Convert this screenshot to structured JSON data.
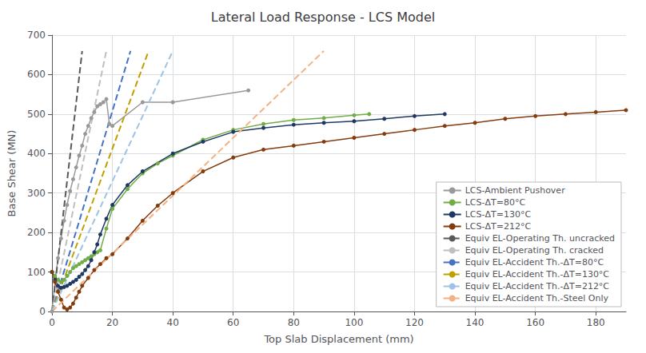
{
  "chart_data": {
    "type": "line",
    "title": "Lateral Load Response - LCS Model",
    "xlabel": "Top Slab Displacement (mm)",
    "ylabel": "Base Shear (MN)",
    "xlim": [
      0,
      190
    ],
    "ylim": [
      0,
      700
    ],
    "xticks": [
      0,
      20,
      40,
      60,
      80,
      100,
      120,
      140,
      160,
      180
    ],
    "yticks": [
      0,
      100,
      200,
      300,
      400,
      500,
      600,
      700
    ],
    "grid": true,
    "legend": "lower right",
    "series": [
      {
        "name": "LCS-Ambient Pushover",
        "color": "#999999",
        "line_style": "solid",
        "marker": "circle",
        "x": [
          0,
          1,
          2,
          3,
          4,
          5,
          6,
          7,
          8,
          9,
          10,
          11,
          12,
          13,
          14,
          15,
          16,
          17,
          18,
          19,
          20,
          30,
          40,
          65
        ],
        "values": [
          0,
          75,
          135,
          185,
          230,
          270,
          305,
          335,
          365,
          395,
          420,
          450,
          470,
          490,
          505,
          520,
          525,
          530,
          538,
          475,
          470,
          530,
          530,
          560
        ]
      },
      {
        "name": "LCS-ΔT=80°C",
        "color": "#70ad47",
        "line_style": "solid",
        "marker": "circle",
        "x": [
          0,
          1,
          2,
          3,
          4,
          5,
          6,
          7,
          8,
          9,
          10,
          11,
          12,
          13,
          14,
          15,
          16,
          18,
          20,
          25,
          30,
          35,
          40,
          50,
          60,
          70,
          80,
          90,
          100,
          105
        ],
        "values": [
          100,
          90,
          80,
          75,
          80,
          90,
          100,
          110,
          115,
          120,
          125,
          130,
          135,
          140,
          145,
          150,
          155,
          210,
          260,
          310,
          350,
          375,
          395,
          435,
          460,
          475,
          485,
          490,
          497,
          500
        ]
      },
      {
        "name": "LCS-ΔT=130°C",
        "color": "#203864",
        "line_style": "solid",
        "marker": "circle",
        "x": [
          0,
          1,
          2,
          3,
          4,
          5,
          6,
          7,
          8,
          9,
          10,
          11,
          12,
          13,
          14,
          15,
          16,
          18,
          20,
          25,
          30,
          40,
          50,
          60,
          70,
          80,
          90,
          100,
          110,
          120,
          130
        ],
        "values": [
          100,
          80,
          65,
          60,
          62,
          65,
          70,
          75,
          80,
          88,
          95,
          105,
          115,
          130,
          150,
          170,
          195,
          235,
          270,
          320,
          355,
          400,
          430,
          455,
          465,
          473,
          478,
          482,
          488,
          495,
          500
        ]
      },
      {
        "name": "LCS-ΔT=212°C",
        "color": "#843c0c",
        "line_style": "solid",
        "marker": "circle",
        "x": [
          0,
          1,
          2,
          3,
          4,
          5,
          6,
          7,
          8,
          9,
          10,
          12,
          14,
          16,
          18,
          20,
          25,
          30,
          35,
          40,
          50,
          60,
          70,
          80,
          90,
          100,
          110,
          120,
          130,
          140,
          150,
          160,
          170,
          180,
          190
        ],
        "values": [
          100,
          75,
          50,
          30,
          10,
          5,
          10,
          20,
          35,
          50,
          65,
          85,
          105,
          120,
          135,
          145,
          185,
          230,
          268,
          300,
          355,
          390,
          410,
          420,
          430,
          440,
          450,
          460,
          470,
          478,
          488,
          495,
          500,
          505,
          510
        ]
      },
      {
        "name": "Equiv EL-Operating Th. uncracked",
        "color": "#595959",
        "line_style": "dashed",
        "marker": "none",
        "x": [
          0,
          5,
          10
        ],
        "values": [
          0,
          330,
          660
        ]
      },
      {
        "name": "Equiv EL-Operating Th. cracked",
        "color": "#bfbfbf",
        "line_style": "dashed",
        "marker": "none",
        "x": [
          0,
          9,
          18
        ],
        "values": [
          0,
          330,
          660
        ]
      },
      {
        "name": "Equiv EL-Accident Th.-ΔT=80°C",
        "color": "#4472c4",
        "line_style": "dashed",
        "marker": "none",
        "x": [
          0,
          13,
          26
        ],
        "values": [
          0,
          330,
          660
        ]
      },
      {
        "name": "Equiv EL-Accident Th.-ΔT=130°C",
        "color": "#c0a000",
        "line_style": "dashed",
        "marker": "none",
        "x": [
          0,
          16,
          32
        ],
        "values": [
          0,
          330,
          660
        ]
      },
      {
        "name": "Equiv EL-Accident Th.-ΔT=212°C",
        "color": "#9dc3e6",
        "line_style": "dashed",
        "marker": "none",
        "x": [
          0,
          20,
          40
        ],
        "values": [
          0,
          330,
          660
        ]
      },
      {
        "name": "Equiv EL-Accident Th.-Steel Only",
        "color": "#f4b183",
        "line_style": "dashed",
        "marker": "none",
        "x": [
          0,
          45,
          90
        ],
        "values": [
          0,
          330,
          660
        ]
      }
    ]
  }
}
